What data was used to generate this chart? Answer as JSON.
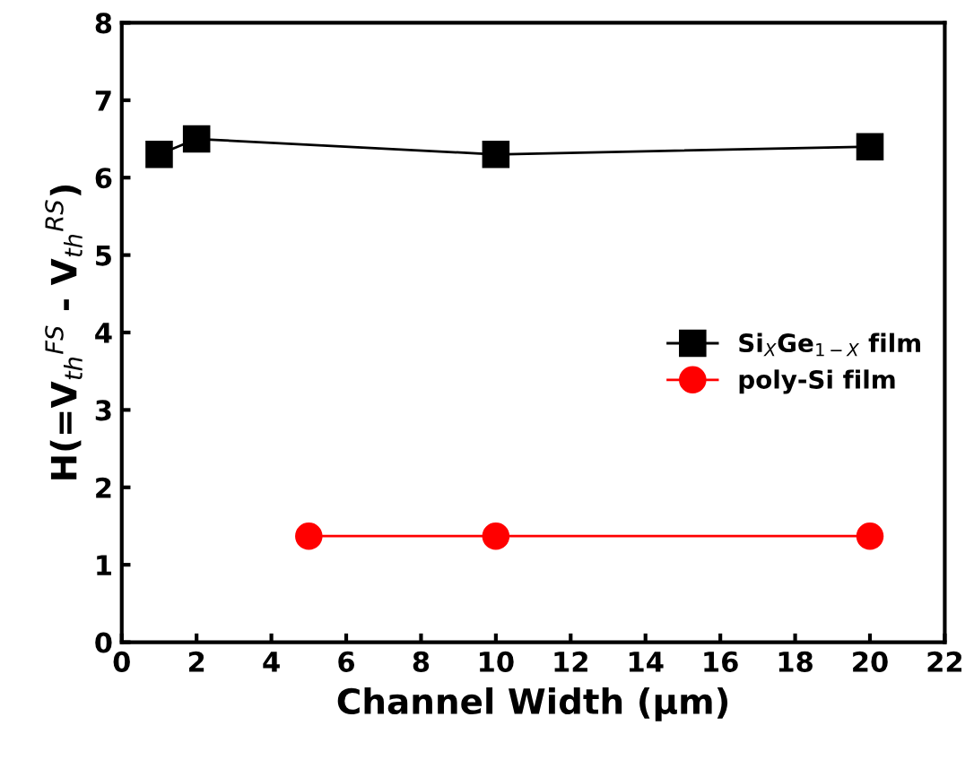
{
  "chart_data": {
    "type": "line",
    "xlabel": "Channel Width (μm)",
    "ylabel": "H(=V$_{th}$$^{FS}$ - V$_{th}$$^{RS}$)",
    "series": [
      {
        "name": "Si$_{X}$Ge$_{1−X}$ film",
        "color": "#000000",
        "marker": "square",
        "x": [
          1,
          2,
          10,
          20
        ],
        "values": [
          6.3,
          6.5,
          6.3,
          6.4
        ]
      },
      {
        "name": "poly-Si film",
        "color": "#ff0000",
        "marker": "circle",
        "x": [
          5,
          10,
          20
        ],
        "values": [
          1.37,
          1.37,
          1.37
        ]
      }
    ],
    "xlim": [
      0,
      22
    ],
    "xticks": [
      0,
      2,
      4,
      6,
      8,
      10,
      12,
      14,
      16,
      18,
      20,
      22
    ],
    "ylim": [
      0,
      8
    ],
    "yticks": [
      0,
      1,
      2,
      3,
      4,
      5,
      6,
      7,
      8
    ],
    "legend": "center right",
    "line_style": "solid",
    "grid": false
  }
}
